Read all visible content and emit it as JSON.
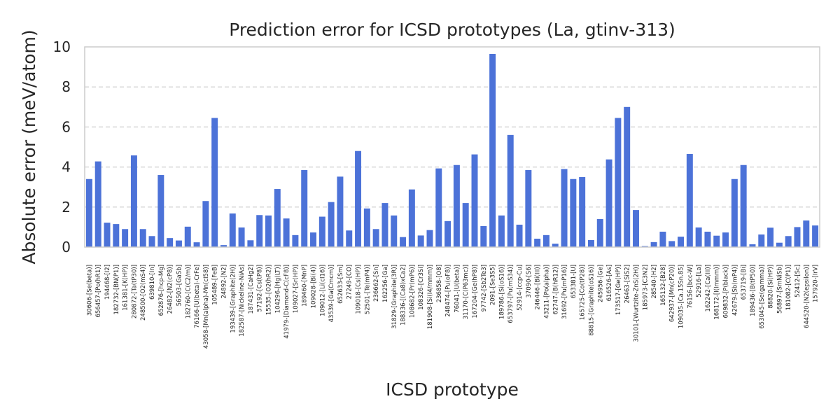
{
  "chart_data": {
    "type": "bar",
    "title": "Prediction error for ICSD prototypes (La, gtinv-313)",
    "xlabel": "ICSD prototype",
    "ylabel": "Absolute error (meV/atom)",
    "ylim": [
      0,
      10
    ],
    "yticks": [
      0,
      2,
      4,
      6,
      8,
      10
    ],
    "grid": "horizontal dashed",
    "bar_color": "#4c72d8",
    "categories": [
      "30606-[Se(beta)]",
      "656457-[Po(hR1)]",
      "194468-[I2]",
      "182732-[BN(P1)]",
      "161381-[K(HP)]",
      "280872-[Ta(tP30)]",
      "248500-[O2(mS4)]",
      "639810-[In]",
      "652876-[hcp-Mg]",
      "26482-[N2(cP8)]",
      "56503-[GaSb]",
      "182760-[C(C2/m)]",
      "76166-[U(beta)-CrFe]",
      "43058-[Mn(alpha)-Mn(cI58)]",
      "105489-[FeB]",
      "24892-[N2]",
      "193439-[Graphite(2H)]",
      "182587-[Nickeline-NiAs]",
      "187431-[CaHg2]",
      "57192-[Cs(tP8)]",
      "15535-[O2(hR2)]",
      "104296-[Hg(LT)]",
      "41979-[Diamond-C(cF8)]",
      "109027-[Sr(HP)]",
      "189460-[MnP]",
      "109028-[Bi(4)]",
      "109012-[Li(cI16)]",
      "43539-[Ga(Cmcm)]",
      "652633-[Sm]",
      "27249-[CO]",
      "109018-[Cs(HP)]",
      "52501-[Te(mP4)]",
      "236662-[Sn]",
      "162256-[Ga]",
      "31829-[Graphite(3R)]",
      "188336-[(Ca8)xCa2]",
      "108682-[Pr(mP6)]",
      "108326-[Cr3Si]",
      "181908-[Si(I4/mmm)]",
      "236858-[O8]",
      "248474-[Pu(oF8)]",
      "76041-[U(beta)]",
      "31170-[C(P63mc)]",
      "167204-[Ge(hP8)]",
      "97742-[Sb2Te3]",
      "2091-[Se3S5]",
      "189786-[Si(oS16)]",
      "653797-[Pu(mS34)]",
      "52914-[ccp-Cu]",
      "37090-[S6]",
      "246446-[Bi(III)]",
      "43211-[Po(alpha)]",
      "62747-[B(hR12)]",
      "31692-[Pu(mP16)]",
      "653381-[U]",
      "165725-[Co(tP28)]",
      "88815-[Graphite(oS16)]",
      "245956-[Ge]",
      "616526-[As]",
      "173517-[Ge(HP)]",
      "26463-[SiS2]",
      "30101-[Wurtzite-ZnS(2H)]",
      "185973-[C3N2]",
      "28540-[H2]",
      "165132-[B28]",
      "642937-[Mn(cP20)]",
      "109035-[Ca.15Sn.85]",
      "76156-[bcc-W]",
      "52916-[La]",
      "162242-[Ca(III)]",
      "168172-[I(Immm)]",
      "609832-[P(black)]",
      "42679-[Sb(mP4)]",
      "653719-[Bi]",
      "189436-[B(tP50)]",
      "653045-[Se(gamma)]",
      "88820-[Si(HP)]",
      "56897-[SmNiSb]",
      "181082-[C(P1)]",
      "52412-[Sc]",
      "644520-[N2(epsilon)]",
      "157920-[IrV]"
    ],
    "values": [
      3.4,
      4.28,
      1.22,
      1.15,
      0.9,
      4.58,
      0.9,
      0.55,
      3.6,
      0.45,
      0.33,
      1.02,
      0.24,
      2.3,
      6.45,
      0.1,
      1.68,
      0.98,
      0.34,
      1.6,
      1.58,
      2.9,
      1.43,
      0.6,
      3.85,
      0.73,
      1.52,
      2.25,
      3.52,
      0.83,
      4.8,
      1.93,
      0.9,
      2.2,
      1.58,
      0.5,
      2.88,
      0.58,
      0.85,
      3.93,
      1.3,
      4.1,
      2.2,
      4.63,
      1.05,
      9.65,
      1.58,
      5.6,
      1.12,
      3.85,
      0.42,
      0.6,
      0.17,
      3.9,
      3.4,
      3.5,
      0.35,
      1.4,
      4.38,
      6.45,
      7.0,
      1.85,
      0.05,
      0.25,
      0.77,
      0.3,
      0.52,
      4.65,
      0.98,
      0.77,
      0.57,
      0.73,
      3.4,
      4.1,
      0.14,
      0.63,
      0.97,
      0.22,
      0.55,
      1.0,
      1.33,
      1.08
    ]
  }
}
